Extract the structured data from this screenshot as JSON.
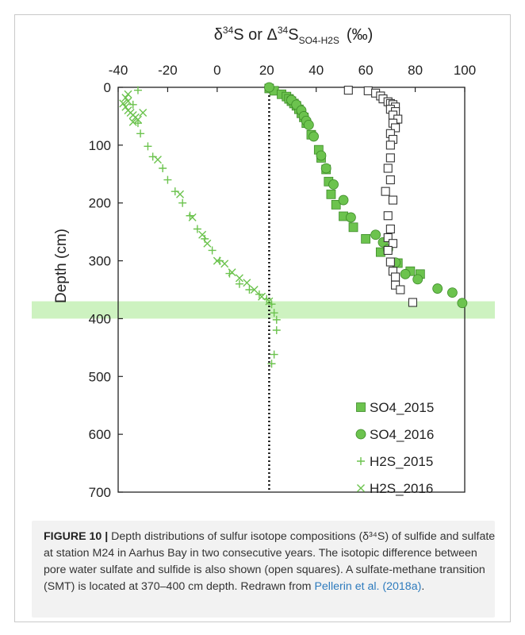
{
  "chart_data": {
    "type": "scatter",
    "title": "δ³⁴S or Δ³⁴S_SO4-H2S (‰)",
    "title_parts": {
      "lead": "δ",
      "sup1": "34",
      "mid": "S or Δ",
      "sup2": "34",
      "base": "S",
      "sub": "SO4-H2S",
      "unit": "(‰)"
    },
    "xlabel": "",
    "ylabel": "Depth (cm)",
    "xlim": [
      -40,
      100
    ],
    "ylim": [
      0,
      700
    ],
    "y_inverted": true,
    "x_axis_position": "top",
    "x_ticks": [
      -40,
      -20,
      0,
      20,
      40,
      60,
      80,
      100
    ],
    "x_tick_labels": [
      "-40",
      "-20",
      "0",
      "20",
      "40",
      "60",
      "80",
      "100"
    ],
    "y_ticks": [
      0,
      100,
      200,
      300,
      400,
      500,
      600,
      700
    ],
    "y_tick_labels": [
      "0",
      "100",
      "200",
      "300",
      "400",
      "500",
      "600",
      "700"
    ],
    "grid": false,
    "legend_position": "bottom-right",
    "smt_band": {
      "from": 370,
      "to": 400,
      "color": "#cdf2c0"
    },
    "reference_line": {
      "x": 21,
      "style": "dotted"
    },
    "series": [
      {
        "name": "SO4_2015",
        "marker": "filled-square",
        "color": "#6cc34e",
        "points": [
          [
            21,
            2
          ],
          [
            23,
            6
          ],
          [
            26,
            12
          ],
          [
            28,
            16
          ],
          [
            29,
            20
          ],
          [
            30,
            24
          ],
          [
            31,
            28
          ],
          [
            32,
            32
          ],
          [
            33,
            38
          ],
          [
            34,
            45
          ],
          [
            35,
            52
          ],
          [
            36,
            62
          ],
          [
            38,
            82
          ],
          [
            41,
            108
          ],
          [
            42,
            122
          ],
          [
            44,
            142
          ],
          [
            45,
            163
          ],
          [
            46,
            185
          ],
          [
            48,
            203
          ],
          [
            51,
            223
          ],
          [
            55,
            242
          ],
          [
            60,
            262
          ],
          [
            66,
            285
          ],
          [
            73,
            304
          ],
          [
            78,
            318
          ],
          [
            82,
            323
          ]
        ]
      },
      {
        "name": "SO4_2016",
        "marker": "filled-circle",
        "color": "#6cc34e",
        "points": [
          [
            21,
            0
          ],
          [
            30,
            22
          ],
          [
            32,
            30
          ],
          [
            34,
            40
          ],
          [
            35,
            50
          ],
          [
            36,
            58
          ],
          [
            37,
            65
          ],
          [
            39,
            85
          ],
          [
            42,
            118
          ],
          [
            44,
            140
          ],
          [
            47,
            168
          ],
          [
            51,
            195
          ],
          [
            54,
            225
          ],
          [
            64,
            255
          ],
          [
            67,
            268
          ],
          [
            69,
            280
          ],
          [
            72,
            303
          ],
          [
            76,
            323
          ],
          [
            81,
            332
          ],
          [
            89,
            348
          ],
          [
            95,
            355
          ],
          [
            99,
            373
          ]
        ]
      },
      {
        "name": "H2S_2015",
        "marker": "plus",
        "color": "#6cc34e",
        "points": [
          [
            -32,
            5
          ],
          [
            -34,
            30
          ],
          [
            -32,
            62
          ],
          [
            -31,
            80
          ],
          [
            -28,
            102
          ],
          [
            -26,
            120
          ],
          [
            -22,
            140
          ],
          [
            -20,
            160
          ],
          [
            -17,
            180
          ],
          [
            -14,
            200
          ],
          [
            -11,
            222
          ],
          [
            -8,
            245
          ],
          [
            -5,
            262
          ],
          [
            -2,
            282
          ],
          [
            1,
            300
          ],
          [
            5,
            322
          ],
          [
            9,
            340
          ],
          [
            13,
            350
          ],
          [
            17,
            358
          ],
          [
            20,
            366
          ],
          [
            22,
            375
          ],
          [
            23,
            390
          ],
          [
            24,
            402
          ],
          [
            24,
            420
          ],
          [
            23,
            462
          ],
          [
            22,
            478
          ]
        ]
      },
      {
        "name": "H2S_2016",
        "marker": "cross",
        "color": "#6cc34e",
        "points": [
          [
            -36,
            12
          ],
          [
            -37,
            18
          ],
          [
            -36,
            24
          ],
          [
            -38,
            28
          ],
          [
            -37,
            34
          ],
          [
            -36,
            40
          ],
          [
            -35,
            44
          ],
          [
            -34,
            48
          ],
          [
            -33,
            52
          ],
          [
            -32,
            56
          ],
          [
            -34,
            60
          ],
          [
            -30,
            44
          ],
          [
            -24,
            125
          ],
          [
            -15,
            185
          ],
          [
            -10,
            225
          ],
          [
            -6,
            255
          ],
          [
            -4,
            270
          ],
          [
            0,
            300
          ],
          [
            3,
            305
          ],
          [
            6,
            320
          ],
          [
            9,
            330
          ],
          [
            12,
            338
          ],
          [
            15,
            350
          ],
          [
            18,
            362
          ],
          [
            21,
            370
          ]
        ]
      },
      {
        "name": "",
        "marker": "open-square",
        "color": "#333333",
        "points": [
          [
            53,
            5
          ],
          [
            61,
            6
          ],
          [
            64,
            10
          ],
          [
            66,
            15
          ],
          [
            67,
            20
          ],
          [
            69,
            25
          ],
          [
            70,
            28
          ],
          [
            71,
            30
          ],
          [
            72,
            34
          ],
          [
            70,
            38
          ],
          [
            72,
            42
          ],
          [
            71,
            48
          ],
          [
            73,
            55
          ],
          [
            71,
            62
          ],
          [
            72,
            70
          ],
          [
            70,
            80
          ],
          [
            71,
            90
          ],
          [
            70,
            100
          ],
          [
            70,
            122
          ],
          [
            69,
            140
          ],
          [
            70,
            160
          ],
          [
            68,
            180
          ],
          [
            71,
            195
          ],
          [
            69,
            222
          ],
          [
            70,
            245
          ],
          [
            69,
            260
          ],
          [
            71,
            270
          ],
          [
            69,
            282
          ],
          [
            70,
            302
          ],
          [
            71,
            318
          ],
          [
            72,
            328
          ],
          [
            72,
            342
          ],
          [
            74,
            350
          ],
          [
            79,
            372
          ]
        ]
      }
    ]
  },
  "caption": {
    "label": "FIGURE 10 |",
    "text_before_link": " Depth distributions of sulfur isotope compositions (δ³⁴S) of sulfide and sulfate at station M24 in Aarhus Bay in two consecutive years. The isotopic difference between pore water sulfate and sulfide is also shown (open squares). A sulfate-methane transition (SMT) is located at 370–400 cm depth. Redrawn from ",
    "link_text": "Pellerin et al. (2018a)",
    "text_after_link": "."
  }
}
